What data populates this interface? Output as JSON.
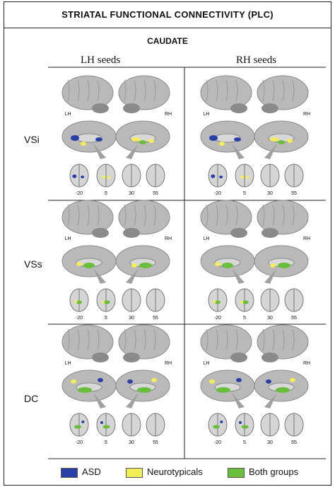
{
  "figure": {
    "title": "STRIATAL FUNCTIONAL CONNECTIVITY (PLC)",
    "subtitle": "CAUDATE",
    "columns": [
      "LH seeds",
      "RH seeds"
    ],
    "rows": [
      "VSi",
      "VSs",
      "DC"
    ],
    "hemisphere_labels": {
      "left": "LH",
      "right": "RH"
    },
    "axial_slices": [
      "-20",
      "5",
      "30",
      "55"
    ]
  },
  "legend": [
    {
      "label": "ASD",
      "color": "#2a3fa8"
    },
    {
      "label": "Neurotypicals",
      "color": "#f2ee55"
    },
    {
      "label": "Both groups",
      "color": "#6abf3a"
    }
  ],
  "colors": {
    "brain": "#b9b9b9",
    "brain_dark": "#8a8a8a",
    "border": "#222222"
  }
}
